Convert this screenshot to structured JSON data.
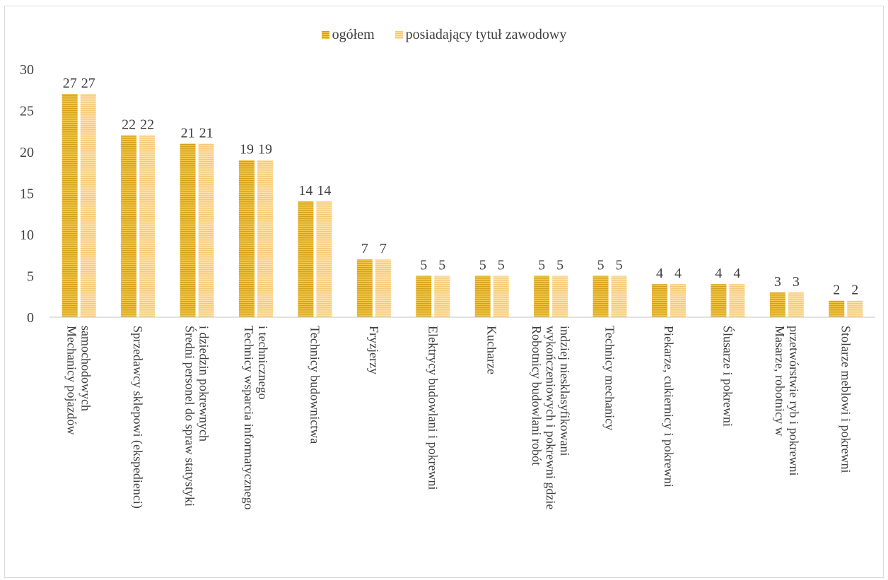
{
  "colors": {
    "total_dark": "#D4A017",
    "total_light": "#F2C94C",
    "prof_dark": "#F7C873",
    "prof_light": "#FDE3B0",
    "axis": "#D9D9D9",
    "text": "#404040"
  },
  "legend": {
    "total_label": "ogółem",
    "prof_label": "posiadający tytuł zawodowy"
  },
  "chart_data": {
    "type": "bar",
    "categories": [
      [
        "Mechanicy pojazdów",
        "samochodowych"
      ],
      [
        "Sprzedawcy sklepowi (ekspedienci)"
      ],
      [
        "Średni personel do spraw statystyki",
        "i dziedzin pokrewnych"
      ],
      [
        "Technicy wsparcia informatycznego",
        "i technicznego"
      ],
      [
        "Technicy budownictwa"
      ],
      [
        "Fryzjerzy"
      ],
      [
        "Elektrycy budowlani i pokrewni"
      ],
      [
        "Kucharze"
      ],
      [
        "Robotnicy budowlani robót",
        "wykończeniowych i pokrewni gdzie",
        "indziej niesklasyfikowani"
      ],
      [
        "Technicy mechanicy"
      ],
      [
        "Piekarze, cukiernicy i pokrewni"
      ],
      [
        "Ślusarze i pokrewni"
      ],
      [
        "Masarze, robotnicy w",
        "przetwórstwie ryb i pokrewni"
      ],
      [
        "Stolarze meblowi i pokrewni"
      ]
    ],
    "series": [
      {
        "name": "ogółem",
        "values": [
          27,
          22,
          21,
          19,
          14,
          7,
          5,
          5,
          5,
          5,
          4,
          4,
          3,
          2
        ]
      },
      {
        "name": "posiadający tytuł zawodowy",
        "values": [
          27,
          22,
          21,
          19,
          14,
          7,
          5,
          5,
          5,
          5,
          4,
          4,
          3,
          2
        ]
      }
    ],
    "ylim": [
      0,
      30
    ],
    "yticks": [
      0,
      5,
      10,
      15,
      20,
      25,
      30
    ],
    "grid": false,
    "legend_position": "top-center",
    "data_labels": true
  }
}
